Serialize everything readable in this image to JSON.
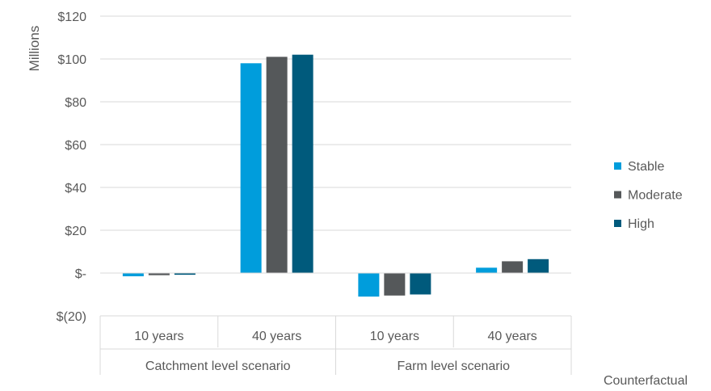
{
  "chart_data": {
    "type": "bar",
    "ylabel": "Millions",
    "xlabel": "Counterfactual",
    "ylim": [
      -20,
      120
    ],
    "y_ticks": [
      {
        "value": 120,
        "label": "$120"
      },
      {
        "value": 100,
        "label": "$100"
      },
      {
        "value": 80,
        "label": "$80"
      },
      {
        "value": 60,
        "label": "$60"
      },
      {
        "value": 40,
        "label": "$40"
      },
      {
        "value": 20,
        "label": "$20"
      },
      {
        "value": 0,
        "label": "$-"
      },
      {
        "value": -20,
        "label": "$(20)"
      }
    ],
    "groups": [
      {
        "label": "Catchment level scenario",
        "categories": [
          "10 years",
          "40 years"
        ]
      },
      {
        "label": "Farm level scenario",
        "categories": [
          "10 years",
          "40 years"
        ]
      }
    ],
    "series": [
      {
        "name": "Stable",
        "color": "#009ddc",
        "values": [
          -1.5,
          98,
          -11,
          2.5
        ]
      },
      {
        "name": "Moderate",
        "color": "#55585a",
        "values": [
          -1,
          101,
          -10.5,
          5.5
        ]
      },
      {
        "name": "High",
        "color": "#005a7c",
        "values": [
          -0.8,
          102,
          -10,
          6.5
        ]
      }
    ],
    "grid": true,
    "legend_position": "right"
  }
}
